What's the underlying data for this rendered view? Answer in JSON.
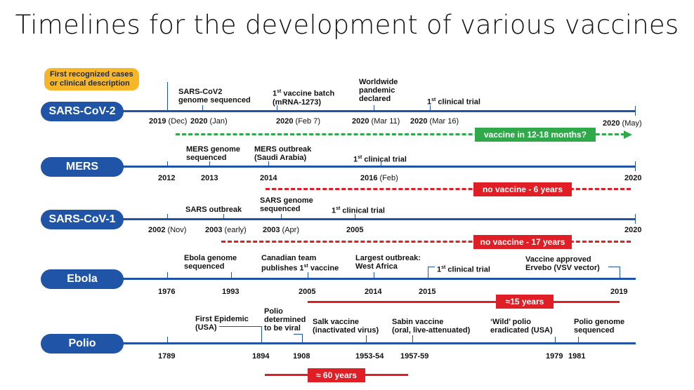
{
  "title": "Timelines for the development of various vaccines",
  "colors": {
    "axis": "#1f54a6",
    "red": "#e01e26",
    "green": "#2fa94a",
    "note": "#f7b627"
  },
  "sars2": {
    "name": "SARS-CoV-2",
    "note_line1": "First recognized cases",
    "note_line2": "or clinical description",
    "ev1_l1": "SARS-CoV2",
    "ev1_l2": "genome sequenced",
    "ev2_sup": "st",
    "ev2_l1a": "1",
    "ev2_l1b": " vaccine batch",
    "ev2_l2": "(mRNA-1273)",
    "ev3_l1": "Worldwide",
    "ev3_l2": "pandemic",
    "ev3_l3": "declared",
    "ev4_a": "1",
    "ev4_sup": "st",
    "ev4_b": " clinical trial",
    "d1_y": "2019",
    "d1_m": " (Dec)",
    "d2_y": "2020",
    "d2_m": " (Jan)",
    "d3_y": "2020",
    "d3_m": " (Feb 7)",
    "d4_y": "2020",
    "d4_m": " (Mar 11)",
    "d5_y": "2020",
    "d5_m": " (Mar 16)",
    "d6_y": "2020",
    "d6_m": " (May)",
    "projection": "vaccine in 12-18 months?"
  },
  "mers": {
    "name": "MERS",
    "ev1_l1": "MERS genome",
    "ev1_l2": "sequenced",
    "ev2_l1": "MERS outbreak",
    "ev2_l2": "(Saudi Arabia)",
    "ev3_a": "1",
    "ev3_sup": "st",
    "ev3_b": " clinical trial",
    "d1": "2012",
    "d2": "2013",
    "d3": "2014",
    "d4_y": "2016",
    "d4_m": " (Feb)",
    "d5": "2020",
    "status": "no vaccine - 6 years"
  },
  "sars1": {
    "name": "SARS-CoV-1",
    "ev1": "SARS outbreak",
    "ev2_l1": "SARS genome",
    "ev2_l2": "sequenced",
    "ev3_a": "1",
    "ev3_sup": "st",
    "ev3_b": " clinical trial",
    "d1_y": "2002",
    "d1_m": " (Nov)",
    "d2_y": "2003",
    "d2_m": " (early)",
    "d3_y": "2003",
    "d3_m": " (Apr)",
    "d4": "2005",
    "d5": "2020",
    "status": "no vaccine - 17 years"
  },
  "ebola": {
    "name": "Ebola",
    "ev1_l1": "Ebola genome",
    "ev1_l2": "sequenced",
    "ev2_l1": "Canadian team",
    "ev2_l2a": "publishes 1",
    "ev2_sup": "st",
    "ev2_l2b": " vaccine",
    "ev3_l1": "Largest outbreak:",
    "ev3_l2": "West Africa",
    "ev4_a": "1",
    "ev4_sup": "st",
    "ev4_b": " clinical trial",
    "ev5_l1": "Vaccine approved",
    "ev5_l2": "Ervebo (VSV vector)",
    "d1": "1976",
    "d2": "1993",
    "d3": "2005",
    "d4": "2014",
    "d5": "2015",
    "d6": "2019",
    "span": "≈15 years"
  },
  "polio": {
    "name": "Polio",
    "ev1_l1": "First Epidemic",
    "ev1_l2": "(USA)",
    "ev2_l1": "Polio",
    "ev2_l2": "determined",
    "ev2_l3": "to be viral",
    "ev3_l1": "Salk vaccine",
    "ev3_l2": "(inactivated virus)",
    "ev4_l1": "Sabin vaccine",
    "ev4_l2": "(oral, live-attenuated)",
    "ev5_l1": "‘Wild’ polio",
    "ev5_l2": "eradicated (USA)",
    "ev6_l1": "Polio genome",
    "ev6_l2": "sequenced",
    "d1": "1789",
    "d2": "1894",
    "d3": "1908",
    "d4": "1953-54",
    "d5": "1957-59",
    "d6": "1979",
    "d7": "1981",
    "span": "≈ 60 years"
  }
}
